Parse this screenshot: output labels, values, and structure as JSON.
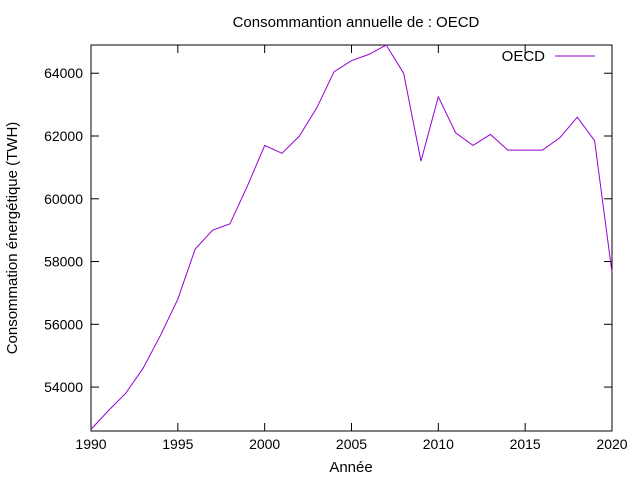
{
  "chart_data": {
    "type": "line",
    "title": "Consommantion annuelle de : OECD",
    "xlabel": "Année",
    "ylabel": "Consommation énergétique (TWH)",
    "xlim": [
      1990,
      2020
    ],
    "ylim": [
      52600,
      64900
    ],
    "xticks": [
      1990,
      1995,
      2000,
      2005,
      2010,
      2015,
      2020
    ],
    "yticks": [
      54000,
      56000,
      58000,
      60000,
      62000,
      64000
    ],
    "legend_position": "top-right",
    "grid": false,
    "series": [
      {
        "name": "OECD",
        "color": "#9400d3",
        "x": [
          1990,
          1991,
          1992,
          1993,
          1994,
          1995,
          1996,
          1997,
          1998,
          1999,
          2000,
          2001,
          2002,
          2003,
          2004,
          2005,
          2006,
          2007,
          2008,
          2009,
          2010,
          2011,
          2012,
          2013,
          2014,
          2015,
          2016,
          2017,
          2018,
          2019,
          2020
        ],
        "y": [
          52650,
          53250,
          53800,
          54600,
          55650,
          56800,
          58400,
          59000,
          59200,
          60400,
          61700,
          61450,
          62000,
          62900,
          64050,
          64400,
          64600,
          64900,
          64000,
          61200,
          63250,
          62100,
          61700,
          62050,
          61550,
          61550,
          61550,
          61950,
          62600,
          61850,
          57650
        ]
      }
    ]
  }
}
